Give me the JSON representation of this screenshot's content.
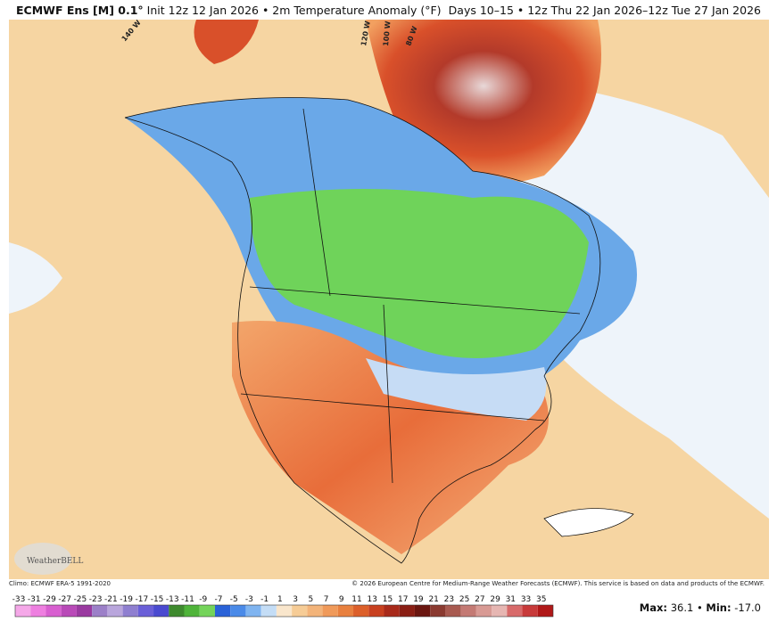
{
  "header": {
    "model": "ECMWF Ens [M] 0.1°",
    "title": "Init 12z 12 Jan 2026 • 2m Temperature Anomaly (°F)",
    "period": "Days 10–15 • 12z Thu 22 Jan 2026–12z Tue 27 Jan 2026"
  },
  "map": {
    "longitude_labels": [
      "140 W",
      "120 W",
      "100 W",
      "80 W"
    ],
    "logo": "WeatherBELL"
  },
  "footer": {
    "climo": "Climo: ECMWF ERA-5 1991-2020",
    "copyright": "© 2026 European Centre for Medium-Range Weather Forecasts (ECMWF). This service is based on data and products of the ECMWF."
  },
  "colorbar": {
    "ticks": [
      -33,
      -31,
      -29,
      -27,
      -25,
      -23,
      -21,
      -19,
      -17,
      -15,
      -13,
      -11,
      -9,
      -7,
      -5,
      -3,
      -1,
      1,
      3,
      5,
      7,
      9,
      11,
      13,
      15,
      17,
      19,
      21,
      23,
      25,
      27,
      29,
      31,
      33,
      35
    ]
  },
  "stats": {
    "max_label": "Max:",
    "max": 36.1,
    "min_label": "Min:",
    "min": {
      "value": -17,
      "label": "-17.0"
    }
  }
}
